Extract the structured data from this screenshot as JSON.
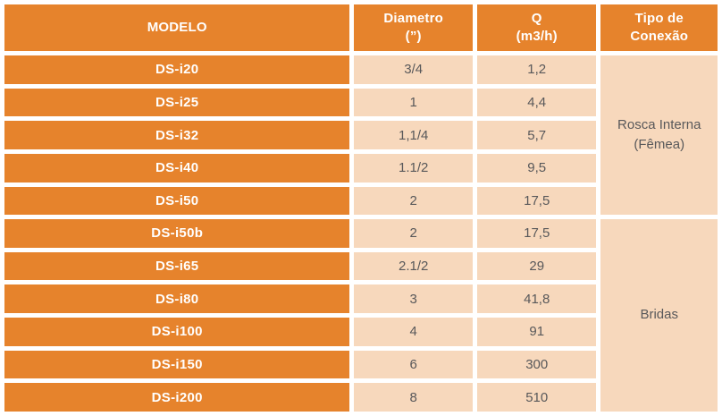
{
  "colors": {
    "orange": "#E6832C",
    "beige": "#F7D8BC",
    "text_dark": "#58585A",
    "text_light": "#FFFFFF",
    "page_bg": "#FFFFFF"
  },
  "table": {
    "headers": [
      {
        "line1": "MODELO",
        "line2": ""
      },
      {
        "line1": "Diametro",
        "line2": "(”)"
      },
      {
        "line1": "Q",
        "line2": "(m3/h)"
      },
      {
        "line1": "Tipo de",
        "line2": "Conexão"
      }
    ],
    "rows": [
      {
        "modelo": "DS-i20",
        "diametro": "3/4",
        "q": "1,2"
      },
      {
        "modelo": "DS-i25",
        "diametro": "1",
        "q": "4,4"
      },
      {
        "modelo": "DS-i32",
        "diametro": "1,1/4",
        "q": "5,7"
      },
      {
        "modelo": "DS-i40",
        "diametro": "1.1/2",
        "q": "9,5"
      },
      {
        "modelo": "DS-i50",
        "diametro": "2",
        "q": "17,5"
      },
      {
        "modelo": "DS-i50b",
        "diametro": "2",
        "q": "17,5"
      },
      {
        "modelo": "DS-i65",
        "diametro": "2.1/2",
        "q": "29"
      },
      {
        "modelo": "DS-i80",
        "diametro": "3",
        "q": "41,8"
      },
      {
        "modelo": "DS-i100",
        "diametro": "4",
        "q": "91"
      },
      {
        "modelo": "DS-i150",
        "diametro": "6",
        "q": "300"
      },
      {
        "modelo": "DS-i200",
        "diametro": "8",
        "q": "510"
      }
    ],
    "connection_groups": [
      {
        "label": "Rosca Interna (Fêmea)",
        "span": 5
      },
      {
        "label": "Bridas",
        "span": 6
      }
    ]
  }
}
